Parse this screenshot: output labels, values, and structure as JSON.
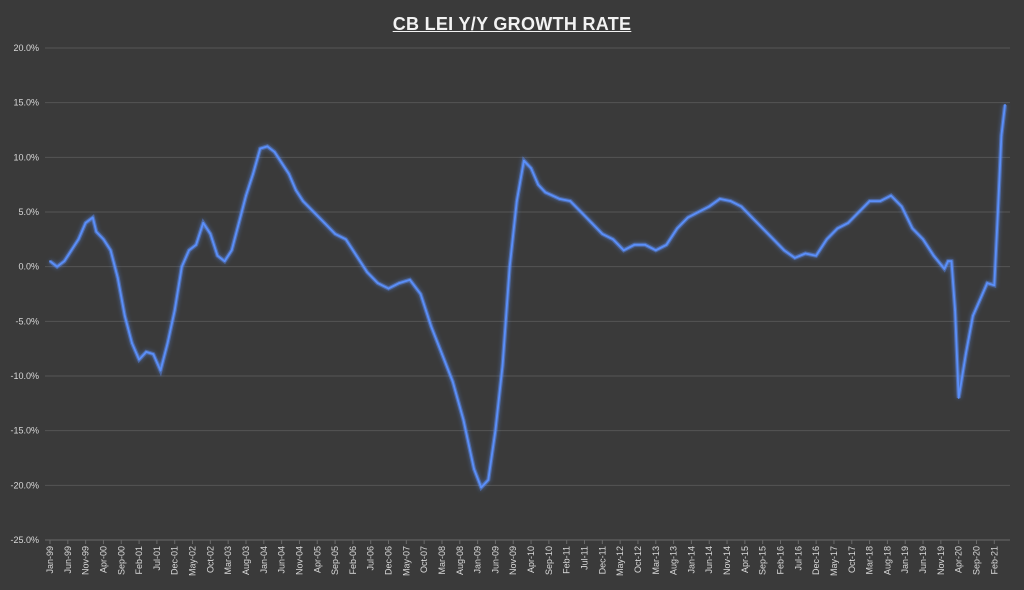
{
  "chart_data": {
    "type": "line",
    "title": "CB LEI Y/Y GROWTH RATE",
    "xlabel": "",
    "ylabel": "",
    "ylim": [
      -25,
      20
    ],
    "y_ticks": [
      "20.0%",
      "15.0%",
      "10.0%",
      "5.0%",
      "0.0%",
      "-5.0%",
      "-10.0%",
      "-15.0%",
      "-20.0%",
      "-25.0%"
    ],
    "x_range": [
      "1999-01",
      "2021-05"
    ],
    "x_tick_labels": [
      "Jan-99",
      "Jun-99",
      "Nov-99",
      "Apr-00",
      "Sep-00",
      "Feb-01",
      "Jul-01",
      "Dec-01",
      "May-02",
      "Oct-02",
      "Mar-03",
      "Aug-03",
      "Jan-04",
      "Jun-04",
      "Nov-04",
      "Apr-05",
      "Sep-05",
      "Feb-06",
      "Jul-06",
      "Dec-06",
      "May-07",
      "Oct-07",
      "Mar-08",
      "Aug-08",
      "Jan-09",
      "Jun-09",
      "Nov-09",
      "Apr-10",
      "Sep-10",
      "Feb-11",
      "Jul-11",
      "Dec-11",
      "May-12",
      "Oct-12",
      "Mar-13",
      "Aug-13",
      "Jan-14",
      "Jun-14",
      "Nov-14",
      "Apr-15",
      "Sep-15",
      "Feb-16",
      "Jul-16",
      "Dec-16",
      "May-17",
      "Oct-17",
      "Mar-18",
      "Aug-18",
      "Jan-19",
      "Jun-19",
      "Nov-19",
      "Apr-20",
      "Sep-20",
      "Feb-21"
    ],
    "grid": true,
    "line_color": "#5b8ff9",
    "series": [
      {
        "name": "",
        "x": [
          "1999-01",
          "1999-03",
          "1999-05",
          "1999-07",
          "1999-09",
          "1999-11",
          "2000-01",
          "2000-02",
          "2000-04",
          "2000-06",
          "2000-08",
          "2000-10",
          "2000-12",
          "2001-02",
          "2001-04",
          "2001-06",
          "2001-08",
          "2001-10",
          "2001-12",
          "2002-02",
          "2002-04",
          "2002-06",
          "2002-08",
          "2002-10",
          "2002-12",
          "2003-02",
          "2003-04",
          "2003-06",
          "2003-08",
          "2003-10",
          "2003-12",
          "2004-02",
          "2004-04",
          "2004-06",
          "2004-08",
          "2004-10",
          "2004-12",
          "2005-03",
          "2005-06",
          "2005-09",
          "2005-12",
          "2006-03",
          "2006-06",
          "2006-09",
          "2006-12",
          "2007-03",
          "2007-06",
          "2007-09",
          "2007-12",
          "2008-03",
          "2008-06",
          "2008-09",
          "2008-12",
          "2009-02",
          "2009-04",
          "2009-06",
          "2009-08",
          "2009-10",
          "2009-12",
          "2010-02",
          "2010-04",
          "2010-06",
          "2010-08",
          "2010-10",
          "2010-12",
          "2011-03",
          "2011-06",
          "2011-09",
          "2011-12",
          "2012-03",
          "2012-06",
          "2012-09",
          "2012-12",
          "2013-03",
          "2013-06",
          "2013-09",
          "2013-12",
          "2014-03",
          "2014-06",
          "2014-09",
          "2014-12",
          "2015-03",
          "2015-06",
          "2015-09",
          "2015-12",
          "2016-03",
          "2016-06",
          "2016-09",
          "2016-12",
          "2017-03",
          "2017-06",
          "2017-09",
          "2017-12",
          "2018-03",
          "2018-06",
          "2018-09",
          "2018-12",
          "2019-03",
          "2019-06",
          "2019-09",
          "2019-12",
          "2020-01",
          "2020-02",
          "2020-03",
          "2020-04",
          "2020-06",
          "2020-08",
          "2020-10",
          "2020-12",
          "2021-02",
          "2021-03",
          "2021-04",
          "2021-05"
        ],
        "values": [
          0.5,
          0.0,
          0.5,
          1.5,
          2.5,
          4.0,
          4.5,
          3.2,
          2.5,
          1.5,
          -1.0,
          -4.5,
          -7.0,
          -8.5,
          -7.8,
          -8.0,
          -9.5,
          -7.0,
          -4.0,
          0.0,
          1.5,
          2.0,
          4.0,
          3.0,
          1.0,
          0.5,
          1.5,
          4.0,
          6.5,
          8.5,
          10.8,
          11.0,
          10.5,
          9.5,
          8.5,
          7.0,
          6.0,
          5.0,
          4.0,
          3.0,
          2.5,
          1.0,
          -0.5,
          -1.5,
          -2.0,
          -1.5,
          -1.2,
          -2.5,
          -5.5,
          -8.0,
          -10.5,
          -14.0,
          -18.5,
          -20.2,
          -19.5,
          -15.0,
          -9.0,
          0.0,
          6.0,
          9.7,
          9.0,
          7.5,
          6.8,
          6.5,
          6.2,
          6.0,
          5.0,
          4.0,
          3.0,
          2.5,
          1.5,
          2.0,
          2.0,
          1.5,
          2.0,
          3.5,
          4.5,
          5.0,
          5.5,
          6.2,
          6.0,
          5.5,
          4.5,
          3.5,
          2.5,
          1.5,
          0.8,
          1.2,
          1.0,
          2.5,
          3.5,
          4.0,
          5.0,
          6.0,
          6.0,
          6.5,
          5.5,
          3.5,
          2.5,
          1.0,
          -0.2,
          0.5,
          0.5,
          -4.0,
          -12.0,
          -8.0,
          -4.5,
          -3.0,
          -1.5,
          -1.7,
          5.0,
          12.0,
          14.8
        ]
      }
    ]
  }
}
